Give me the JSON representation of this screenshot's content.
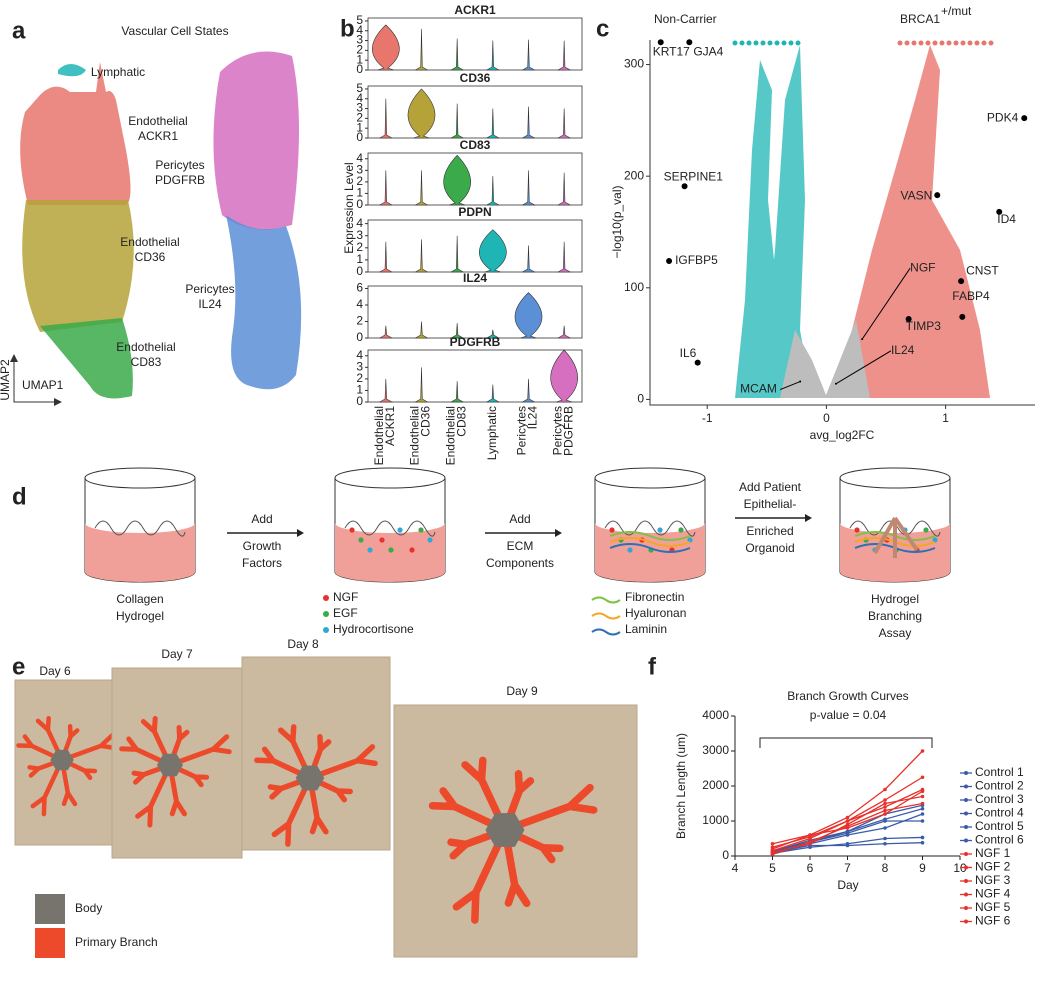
{
  "panel_labels": [
    "a",
    "b",
    "c",
    "d",
    "e",
    "f"
  ],
  "umap": {
    "title": "Vascular Cell States",
    "axis_labels": [
      "UMAP1",
      "UMAP2"
    ],
    "clusters": [
      {
        "label": [
          "Lymphatic"
        ],
        "color": "#1fb5b5"
      },
      {
        "label": [
          "Endothelial",
          "ACKR1"
        ],
        "color": "#e8766d"
      },
      {
        "label": [
          "Pericytes",
          "PDGFRB"
        ],
        "color": "#d66fc0"
      },
      {
        "label": [
          "Endothelial",
          "CD36"
        ],
        "color": "#b5a33a"
      },
      {
        "label": [
          "Pericytes",
          "IL24"
        ],
        "color": "#5b8fd6"
      },
      {
        "label": [
          "Endothelial",
          "CD83"
        ],
        "color": "#3aaa4a"
      }
    ]
  },
  "chart_data": [
    {
      "type": "violin",
      "y_label": "Expression Level",
      "categories": [
        [
          "Endothelial",
          "ACKR1"
        ],
        [
          "Endothelial",
          "CD36"
        ],
        [
          "Endothelial",
          "CD83"
        ],
        [
          "Lymphatic"
        ],
        [
          "Pericytes",
          "IL24"
        ],
        [
          "Pericytes",
          "PDGFRB"
        ]
      ],
      "colors": [
        "#e8766d",
        "#b5a33a",
        "#3aaa4a",
        "#1fb5b5",
        "#5b8fd6",
        "#d66fc0"
      ],
      "series": [
        {
          "name": "ACKR1",
          "values": [
            4.6,
            4.2,
            3.2,
            3.0,
            3.1,
            3.0
          ],
          "ylim": [
            0,
            5.3
          ],
          "yticks": [
            0,
            1,
            2,
            3,
            4,
            5
          ]
        },
        {
          "name": "CD36",
          "values": [
            4.0,
            5.0,
            3.5,
            3.0,
            3.2,
            3.0
          ],
          "ylim": [
            0,
            5.3
          ],
          "yticks": [
            0,
            1,
            2,
            3,
            4,
            5
          ]
        },
        {
          "name": "CD83",
          "values": [
            3.0,
            3.0,
            4.3,
            2.5,
            3.0,
            2.8
          ],
          "ylim": [
            0,
            4.5
          ],
          "yticks": [
            0,
            1,
            2,
            3,
            4
          ]
        },
        {
          "name": "PDPN",
          "values": [
            2.5,
            2.7,
            3.0,
            3.5,
            2.2,
            2.5
          ],
          "ylim": [
            0,
            4.3
          ],
          "yticks": [
            0,
            1,
            2,
            3,
            4
          ]
        },
        {
          "name": "IL24",
          "values": [
            1.5,
            2.0,
            1.8,
            1.0,
            5.5,
            1.5
          ],
          "ylim": [
            0,
            6.3
          ],
          "yticks": [
            0,
            2,
            4,
            6
          ]
        },
        {
          "name": "PDGFRB",
          "values": [
            2.0,
            3.0,
            1.8,
            1.5,
            2.0,
            4.5
          ],
          "ylim": [
            0,
            4.5
          ],
          "yticks": [
            0,
            1,
            2,
            3,
            4
          ]
        }
      ]
    },
    {
      "type": "scatter",
      "group_labels": [
        {
          "text": "Non-Carrier",
          "color": "#1fb5b5"
        },
        {
          "text": "BRCA1",
          "sup": "+/mut",
          "color": "#e8766d"
        }
      ],
      "x_label": "avg_log2FC",
      "y_label": "−log10(p_val)",
      "xlim": [
        -1.48,
        1.75
      ],
      "ylim": [
        -5,
        322
      ],
      "xticks": [
        -1,
        0,
        1
      ],
      "yticks": [
        0,
        100,
        200,
        300
      ],
      "points": {
        "color": "#000000",
        "labels": [
          "KRT17",
          "GJA4",
          "SERPINE1",
          "IGFBP5",
          "IL6",
          "MCAM",
          "PDK4",
          "VASN",
          "ID4",
          "CNST",
          "NGF",
          "TIMP3",
          "FABP4",
          "IL24"
        ],
        "x": [
          -1.39,
          -1.15,
          -1.19,
          -1.32,
          -1.08,
          -0.22,
          1.66,
          0.93,
          1.45,
          1.13,
          0.3,
          0.69,
          1.14,
          0.08
        ],
        "y": [
          320,
          320,
          191,
          124,
          33,
          16,
          252,
          183,
          168,
          106,
          54,
          72,
          74,
          14
        ]
      }
    },
    {
      "type": "line",
      "title": "Branch Growth Curves",
      "annotation": "p-value = 0.04",
      "x_label": "Day",
      "y_label": "Branch Length (um)",
      "x": [
        5,
        6,
        7,
        8,
        9
      ],
      "xlim": [
        4,
        10
      ],
      "xticks": [
        4,
        5,
        6,
        7,
        8,
        9,
        10
      ],
      "ylim": [
        0,
        4000
      ],
      "yticks": [
        0,
        1000,
        2000,
        3000,
        4000
      ],
      "series": [
        {
          "name": "Control 1",
          "color": "#3b5ba9",
          "values": [
            80,
            250,
            350,
            500,
            530
          ]
        },
        {
          "name": "Control 2",
          "color": "#3b5ba9",
          "values": [
            100,
            300,
            300,
            350,
            380
          ]
        },
        {
          "name": "Control 3",
          "color": "#3b5ba9",
          "values": [
            150,
            400,
            650,
            1000,
            1000
          ]
        },
        {
          "name": "Control 4",
          "color": "#3b5ba9",
          "values": [
            50,
            350,
            600,
            800,
            1200
          ]
        },
        {
          "name": "Control 5",
          "color": "#3b5ba9",
          "values": [
            120,
            450,
            700,
            1050,
            1350
          ]
        },
        {
          "name": "Control 6",
          "color": "#3b5ba9",
          "values": [
            100,
            400,
            700,
            1200,
            1450
          ]
        },
        {
          "name": "NGF 1",
          "color": "#e8312a",
          "values": [
            350,
            600,
            1100,
            1900,
            3000
          ]
        },
        {
          "name": "NGF 2",
          "color": "#e8312a",
          "values": [
            250,
            550,
            1000,
            1600,
            2250
          ]
        },
        {
          "name": "NGF 3",
          "color": "#e8312a",
          "values": [
            150,
            500,
            1000,
            1400,
            1900
          ]
        },
        {
          "name": "NGF 4",
          "color": "#e8312a",
          "values": [
            200,
            600,
            800,
            1200,
            1850
          ]
        },
        {
          "name": "NGF 5",
          "color": "#e8312a",
          "values": [
            50,
            400,
            850,
            1300,
            1500
          ]
        },
        {
          "name": "NGF 6",
          "color": "#e8312a",
          "values": [
            100,
            350,
            900,
            1500,
            1700
          ]
        }
      ]
    }
  ],
  "diagram": {
    "captions": [
      [
        "Collagen",
        "Hydrogel"
      ],
      [
        "Hydrogel",
        "Branching",
        "Assay"
      ]
    ],
    "arrows": [
      [
        "Add",
        "Growth",
        "Factors"
      ],
      [
        "Add",
        "ECM",
        "Components"
      ],
      [
        "Add Patient",
        "Epithelial-",
        "Enriched",
        "Organoid"
      ]
    ],
    "factor_legend": [
      {
        "name": "NGF",
        "color": "#e8312a"
      },
      {
        "name": "EGF",
        "color": "#3aaa4a"
      },
      {
        "name": "Hydrocortisone",
        "color": "#2fa8d8"
      }
    ],
    "ecm_legend": [
      {
        "name": "Fibronectin",
        "color": "#7dc242"
      },
      {
        "name": "Hyaluronan",
        "color": "#f5a623"
      },
      {
        "name": "Laminin",
        "color": "#2e6fb5"
      }
    ]
  },
  "micrographs": {
    "days": [
      "Day 6",
      "Day 7",
      "Day 8",
      "Day 9"
    ],
    "legend": [
      {
        "name": "Body",
        "color": "#77746e"
      },
      {
        "name": "Primary Branch",
        "color": "#ec4a2a"
      }
    ]
  }
}
